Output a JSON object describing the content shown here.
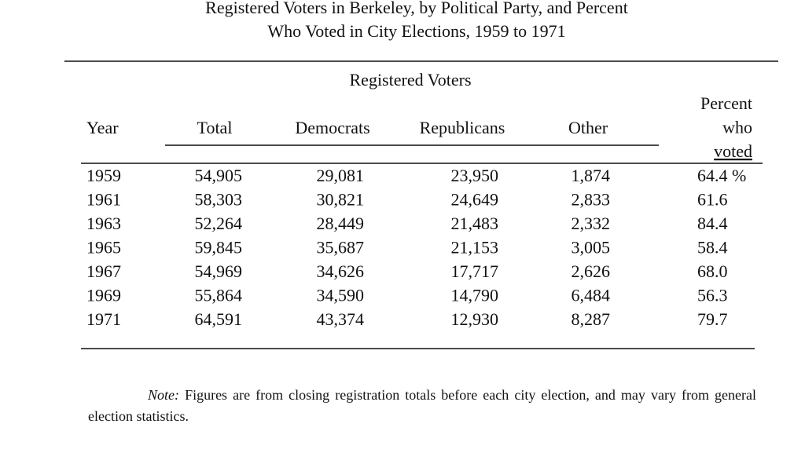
{
  "title": [
    "Registered Voters in Berkeley, by Political Party, and Percent",
    "Who Voted in City Elections, 1959 to 1971"
  ],
  "table": {
    "group_header": "Registered Voters",
    "columns": [
      "Year",
      "Total",
      "Democrats",
      "Republicans",
      "Other",
      [
        "Percent",
        "who",
        "voted"
      ]
    ],
    "rows": [
      [
        "1959",
        "54,905",
        "29,081",
        "23,950",
        "1,874",
        "64.4 %"
      ],
      [
        "1961",
        "58,303",
        "30,821",
        "24,649",
        "2,833",
        "61.6"
      ],
      [
        "1963",
        "52,264",
        "28,449",
        "21,483",
        "2,332",
        "84.4"
      ],
      [
        "1965",
        "59,845",
        "35,687",
        "21,153",
        "3,005",
        "58.4"
      ],
      [
        "1967",
        "54,969",
        "34,626",
        "17,717",
        "2,626",
        "68.0"
      ],
      [
        "1969",
        "55,864",
        "34,590",
        "14,790",
        "6,484",
        "56.3"
      ],
      [
        "1971",
        "64,591",
        "43,374",
        "12,930",
        "8,287",
        "79.7"
      ]
    ]
  },
  "note": {
    "label": "Note:",
    "text": "Figures are from closing registration totals before each city election, and may vary from general election statistics."
  }
}
